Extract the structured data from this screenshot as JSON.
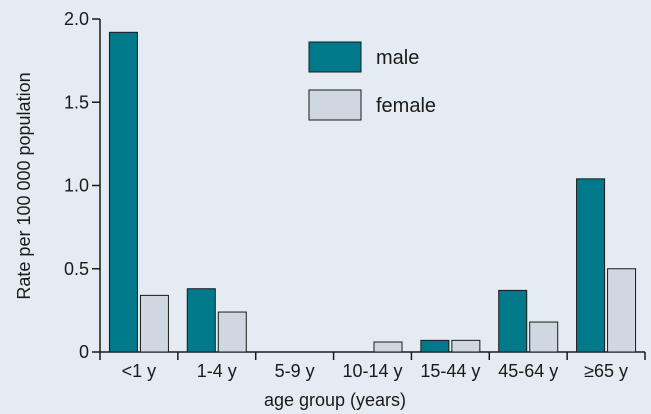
{
  "chart_data": {
    "type": "bar",
    "title": "",
    "xlabel": "age group (years)",
    "ylabel": "Rate per 100 000 population",
    "ylim": [
      0,
      2.0
    ],
    "yticks": [
      {
        "value": 0,
        "label": "0"
      },
      {
        "value": 0.5,
        "label": "0.5"
      },
      {
        "value": 1.0,
        "label": "1.0"
      },
      {
        "value": 1.5,
        "label": "1.5"
      },
      {
        "value": 2.0,
        "label": "2.0"
      }
    ],
    "categories": [
      "<1 y",
      "1-4 y",
      "5-9 y",
      "10-14 y",
      "15-44 y",
      "45-64 y",
      "≥65 y"
    ],
    "series": [
      {
        "name": "male",
        "color": "#007a8a",
        "values": [
          1.92,
          0.38,
          0,
          0,
          0.07,
          0.37,
          1.04
        ]
      },
      {
        "name": "female",
        "color": "#cfd8e0",
        "values": [
          0.34,
          0.24,
          0,
          0.06,
          0.07,
          0.18,
          0.5
        ]
      }
    ],
    "legend_position": "top-center",
    "grid": false
  }
}
